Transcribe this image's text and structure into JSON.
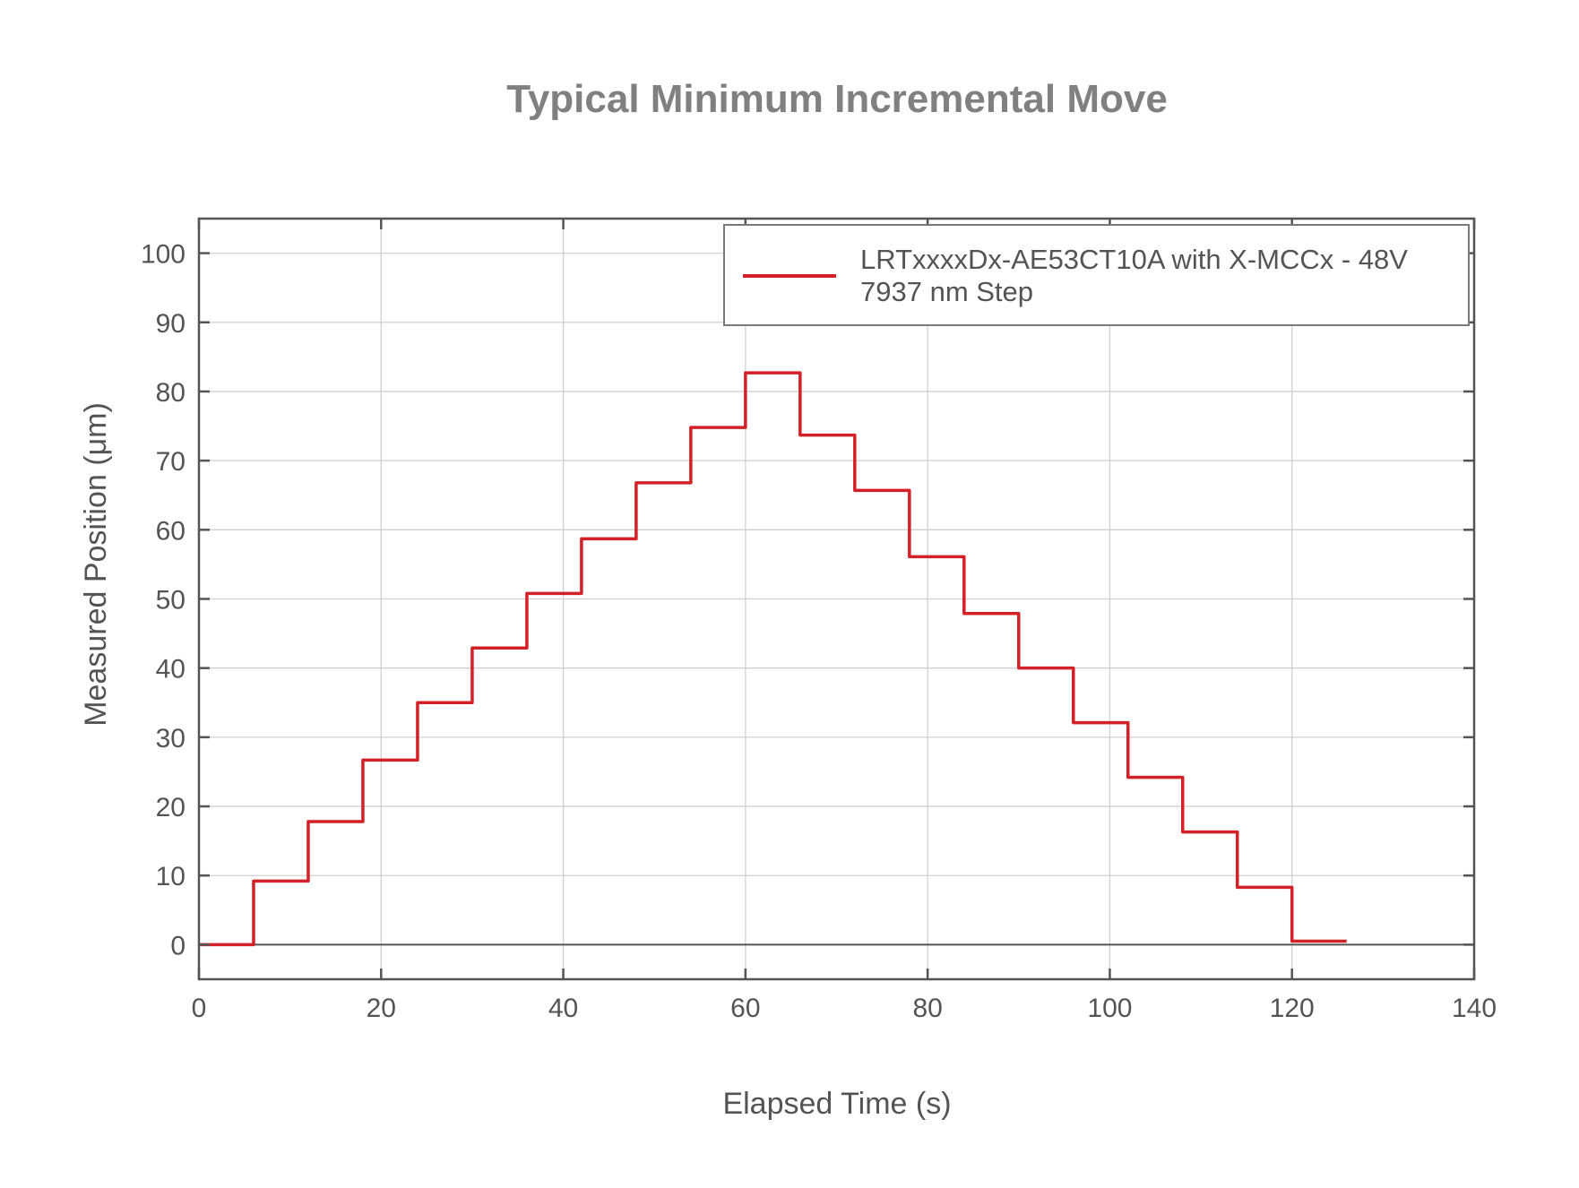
{
  "chart_data": {
    "type": "line",
    "title": "Typical Minimum Incremental Move",
    "xlabel": "Elapsed Time (s)",
    "ylabel": "Measured Position (μm)",
    "xlim": [
      0,
      140
    ],
    "ylim": [
      -5,
      105
    ],
    "xticks": [
      0,
      20,
      40,
      60,
      80,
      100,
      120,
      140
    ],
    "yticks": [
      0,
      10,
      20,
      30,
      40,
      50,
      60,
      70,
      80,
      90,
      100
    ],
    "grid": true,
    "legend_position": "upper right",
    "series": [
      {
        "name": "LRTxxxxDx-AE53CT10A with X-MCCx - 48V 7937 nm Step",
        "legend_lines": [
          "LRTxxxxDx-AE53CT10A with X-MCCx - 48V",
          "7937 nm Step"
        ],
        "color": "#d42027",
        "step": true,
        "x": [
          0,
          6,
          12,
          18,
          24,
          30,
          36,
          42,
          48,
          54,
          60,
          66,
          72,
          78,
          84,
          90,
          96,
          102,
          108,
          114,
          120,
          126
        ],
        "y": [
          0,
          9.2,
          17.8,
          26.7,
          35.0,
          42.9,
          50.8,
          58.7,
          66.8,
          74.8,
          82.7,
          73.7,
          65.7,
          56.1,
          47.9,
          40.0,
          32.1,
          24.2,
          16.3,
          8.3,
          0.5,
          0.5
        ]
      }
    ],
    "annotations": []
  },
  "colors": {
    "axis": "#545454",
    "grid": "#d0d0d0",
    "title": "#808080",
    "legend_border": "#7a7a7a",
    "series": "#d42027"
  }
}
